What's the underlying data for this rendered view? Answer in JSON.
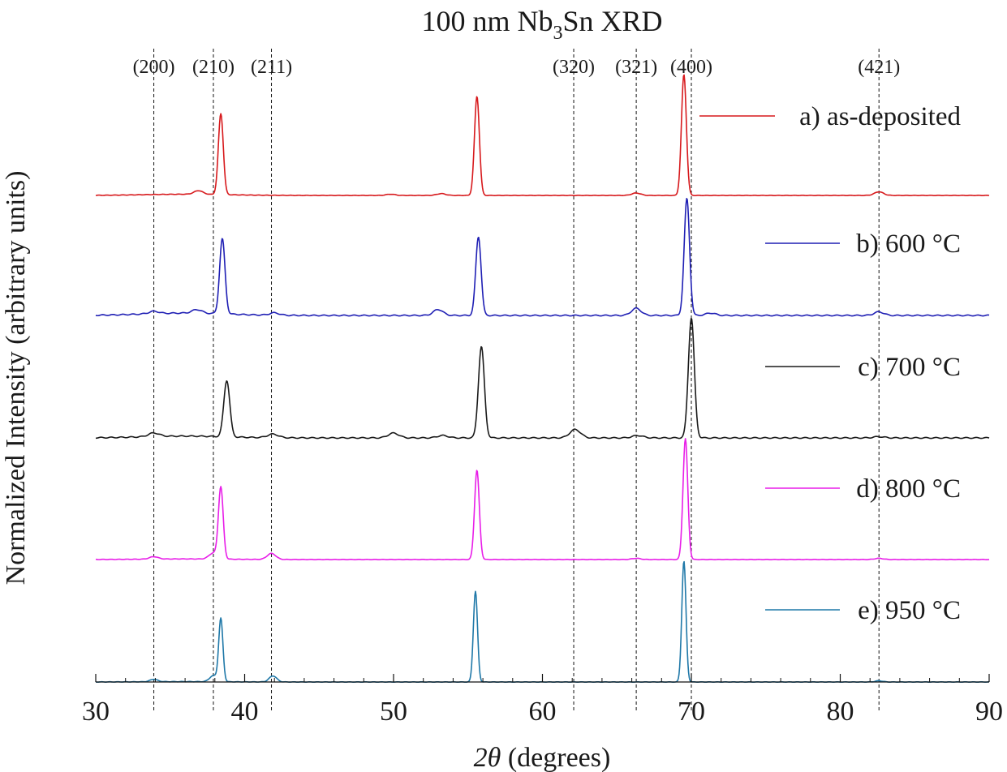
{
  "chart_data": {
    "type": "line",
    "title": {
      "prefix": "100 nm Nb",
      "sub": "3",
      "suffix": "Sn XRD"
    },
    "xlabel": {
      "var": "2θ",
      "rest": " (degrees)"
    },
    "ylabel": "Normalized Intensity (arbitrary units)",
    "xlim": [
      30,
      90
    ],
    "x_ticks": [
      30,
      40,
      50,
      60,
      70,
      80,
      90
    ],
    "grid": false,
    "legend_position": "right",
    "reference_lines": [
      {
        "label": "(200)",
        "x": 33.9
      },
      {
        "label": "(210)",
        "x": 37.9
      },
      {
        "label": "(211)",
        "x": 41.8
      },
      {
        "label": "(320)",
        "x": 62.1
      },
      {
        "label": "(321)",
        "x": 66.3
      },
      {
        "label": "(400)",
        "x": 70.0
      },
      {
        "label": "(421)",
        "x": 82.6
      }
    ],
    "series": [
      {
        "name": "a) as-deposited",
        "color": "#d7191c",
        "width": 0.165,
        "peaks": [
          [
            38.4,
            0.67
          ],
          [
            55.6,
            0.82
          ],
          [
            69.5,
            1.0
          ],
          [
            82.6,
            0.03
          ],
          [
            66.3,
            0.02
          ],
          [
            53.2,
            0.015
          ],
          [
            49.8,
            0.01
          ],
          [
            36.9,
            0.03
          ]
        ],
        "bump": 0.01
      },
      {
        "name": "b) 600 °C",
        "color": "#1f1fb4",
        "width": 0.18,
        "peaks": [
          [
            38.5,
            0.63
          ],
          [
            55.7,
            0.66
          ],
          [
            69.7,
            0.98
          ],
          [
            33.9,
            0.02
          ],
          [
            36.8,
            0.03
          ],
          [
            42.0,
            0.02
          ],
          [
            53.0,
            0.05
          ],
          [
            66.3,
            0.06
          ],
          [
            82.6,
            0.03
          ],
          [
            71.3,
            0.02
          ]
        ],
        "bump": 0.02
      },
      {
        "name": "c) 700 °C",
        "color": "#1a1a1a",
        "width": 0.2,
        "peaks": [
          [
            38.8,
            0.47
          ],
          [
            55.9,
            0.76
          ],
          [
            70.0,
            1.0
          ],
          [
            33.9,
            0.03
          ],
          [
            41.9,
            0.03
          ],
          [
            50.0,
            0.04
          ],
          [
            53.3,
            0.02
          ],
          [
            62.2,
            0.07
          ],
          [
            66.4,
            0.02
          ],
          [
            82.6,
            0.01
          ]
        ],
        "bump": 0.015
      },
      {
        "name": "d) 800 °C",
        "color": "#e81ee8",
        "width": 0.16,
        "peaks": [
          [
            38.4,
            0.59
          ],
          [
            55.6,
            0.74
          ],
          [
            69.6,
            1.0
          ],
          [
            33.9,
            0.02
          ],
          [
            41.8,
            0.05
          ],
          [
            37.9,
            0.05
          ],
          [
            66.3,
            0.01
          ],
          [
            82.6,
            0.01
          ]
        ],
        "bump": 0.005
      },
      {
        "name": "e) 950 °C",
        "color": "#1f78a8",
        "width": 0.14,
        "peaks": [
          [
            38.4,
            0.52
          ],
          [
            55.5,
            0.75
          ],
          [
            69.5,
            1.0
          ],
          [
            33.9,
            0.02
          ],
          [
            41.9,
            0.05
          ],
          [
            37.9,
            0.05
          ],
          [
            82.6,
            0.01
          ]
        ],
        "bump": 0.003
      }
    ]
  }
}
